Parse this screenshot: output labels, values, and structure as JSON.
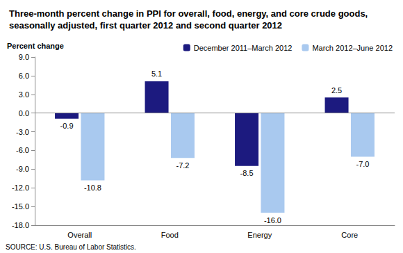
{
  "chart_data": {
    "type": "bar",
    "title": "Three-month percent change in PPI for overall, food, energy, and core crude goods, seasonally adjusted, first quarter 2012 and second quarter 2012",
    "ylabel": "Percent change",
    "source": "SOURCE: U.S. Bureau of Labor Statistics.",
    "categories": [
      "Overall",
      "Food",
      "Energy",
      "Core"
    ],
    "series": [
      {
        "name": "December 2011–March 2012",
        "color": "#1c1a7f",
        "values": [
          -0.9,
          5.1,
          -8.5,
          2.5
        ],
        "value_labels": [
          "-0.9",
          "5.1",
          "-8.5",
          "2.5"
        ]
      },
      {
        "name": "March 2012–June 2012",
        "color": "#a9c9ef",
        "values": [
          -10.8,
          -7.2,
          -16.0,
          -7.0
        ],
        "value_labels": [
          "-10.8",
          "-7.2",
          "-16.0",
          "-7.0"
        ]
      }
    ],
    "ylim": [
      -18,
      9
    ],
    "yticks": [
      {
        "value": -18,
        "label": "-18.0"
      },
      {
        "value": -15,
        "label": "-15.0"
      },
      {
        "value": -12,
        "label": "-12.0"
      },
      {
        "value": -9,
        "label": "-9.0"
      },
      {
        "value": -6,
        "label": "-6.0"
      },
      {
        "value": -3,
        "label": "-3.0"
      },
      {
        "value": 0,
        "label": "0.0"
      },
      {
        "value": 3,
        "label": "3.0"
      },
      {
        "value": 6,
        "label": "6.0"
      },
      {
        "value": 9,
        "label": "9.0"
      }
    ],
    "grid": false,
    "legend": "top right",
    "data_labels": true
  }
}
